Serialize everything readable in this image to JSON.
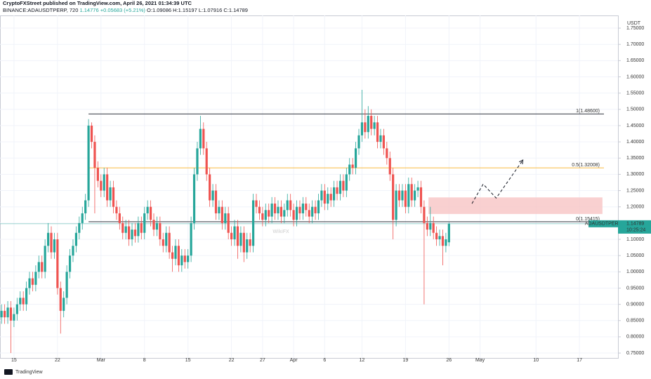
{
  "header": {
    "line1": "CryptoFXStreet published on TradingView.com, April 26, 2021 01:34:39 UTC",
    "symbol": "BINANCE:ADAUSDTPERP, 720",
    "price": "1.14776",
    "change": "+0.05683 (+5.21%)",
    "ohlc": [
      "O:1.09086",
      "H:1.15197",
      "L:1.07916",
      "C:1.14789"
    ]
  },
  "footer": {
    "logo": "TradingView"
  },
  "watermark": "WikiFX",
  "chart_data": {
    "type": "candlestick",
    "y_label": "USDT",
    "up_color": "#26a69a",
    "down_color": "#ef5350",
    "grid": true,
    "xlim": [
      43.75,
      143.2
    ],
    "ylim": [
      0.735,
      1.789
    ],
    "xticks": [
      {
        "value": 46,
        "label": "15"
      },
      {
        "value": 53,
        "label": "22"
      },
      {
        "value": 60,
        "label": "Mar"
      },
      {
        "value": 67,
        "label": "8"
      },
      {
        "value": 74,
        "label": "15"
      },
      {
        "value": 81,
        "label": "22"
      },
      {
        "value": 86,
        "label": "27"
      },
      {
        "value": 91,
        "label": "Apr"
      },
      {
        "value": 96,
        "label": "6"
      },
      {
        "value": 102,
        "label": "12"
      },
      {
        "value": 109,
        "label": "19"
      },
      {
        "value": 116,
        "label": "26"
      },
      {
        "value": 121,
        "label": "May"
      },
      {
        "value": 130,
        "label": "10"
      },
      {
        "value": 137,
        "label": "17"
      }
    ],
    "yticks": [
      {
        "value": 0.75,
        "label": "0.75000"
      },
      {
        "value": 0.8,
        "label": "0.80000"
      },
      {
        "value": 0.85,
        "label": "0.85000"
      },
      {
        "value": 0.9,
        "label": "0.90000"
      },
      {
        "value": 0.95,
        "label": "0.95000"
      },
      {
        "value": 1.0,
        "label": "1.00000"
      },
      {
        "value": 1.05,
        "label": "1.05000"
      },
      {
        "value": 1.1,
        "label": "1.10000"
      },
      {
        "value": 1.15,
        "label": "1.15000"
      },
      {
        "value": 1.2,
        "label": "1.20000"
      },
      {
        "value": 1.25,
        "label": "1.25000"
      },
      {
        "value": 1.3,
        "label": "1.30000"
      },
      {
        "value": 1.35,
        "label": "1.35000"
      },
      {
        "value": 1.4,
        "label": "1.40000"
      },
      {
        "value": 1.45,
        "label": "1.45000"
      },
      {
        "value": 1.5,
        "label": "1.50000"
      },
      {
        "value": 1.55,
        "label": "1.55000"
      },
      {
        "value": 1.6,
        "label": "1.60000"
      },
      {
        "value": 1.65,
        "label": "1.65000"
      },
      {
        "value": 1.7,
        "label": "1.70000"
      },
      {
        "value": 1.75,
        "label": "1.75000"
      }
    ],
    "x": [
      44,
      44.5,
      45,
      45.5,
      46,
      46.5,
      47,
      47.5,
      48,
      48.5,
      49,
      49.5,
      50,
      50.5,
      51,
      51.5,
      52,
      52.5,
      53,
      53.5,
      54,
      54.5,
      55,
      55.5,
      56,
      56.5,
      57,
      57.5,
      58,
      58.5,
      59,
      59.5,
      60,
      60.5,
      61,
      61.5,
      62,
      62.5,
      63,
      63.5,
      64,
      64.5,
      65,
      65.5,
      66,
      66.5,
      67,
      67.5,
      68,
      68.5,
      69,
      69.5,
      70,
      70.5,
      71,
      71.5,
      72,
      72.5,
      73,
      73.5,
      74,
      74.5,
      75,
      75.5,
      76,
      76.5,
      77,
      77.5,
      78,
      78.5,
      79,
      79.5,
      80,
      80.5,
      81,
      81.5,
      82,
      82.5,
      83,
      83.5,
      84,
      84.5,
      85,
      85.5,
      86,
      86.5,
      87,
      87.5,
      88,
      88.5,
      89,
      89.5,
      90,
      90.5,
      91,
      91.5,
      92,
      92.5,
      93,
      93.5,
      94,
      94.5,
      95,
      95.5,
      96,
      96.5,
      97,
      97.5,
      98,
      98.5,
      99,
      99.5,
      100,
      100.5,
      101,
      101.5,
      102,
      102.5,
      103,
      103.5,
      104,
      104.5,
      105,
      105.5,
      106,
      106.5,
      107,
      107.5,
      108,
      108.5,
      109,
      109.5,
      110,
      110.5,
      111,
      111.5,
      112,
      112.5,
      113,
      113.5,
      114,
      114.5,
      115,
      115.5,
      116
    ],
    "open": [
      0.86,
      0.88,
      0.86,
      0.89,
      0.85,
      0.87,
      0.9,
      0.92,
      0.9,
      0.95,
      0.98,
      0.96,
      1.0,
      1.03,
      1.0,
      1.08,
      1.12,
      1.06,
      1.1,
      0.95,
      0.88,
      0.92,
      1.0,
      1.05,
      1.08,
      1.12,
      1.15,
      1.18,
      1.22,
      1.45,
      1.4,
      1.32,
      1.28,
      1.25,
      1.3,
      1.22,
      1.26,
      1.2,
      1.18,
      1.15,
      1.12,
      1.14,
      1.1,
      1.13,
      1.11,
      1.15,
      1.12,
      1.18,
      1.2,
      1.16,
      1.13,
      1.15,
      1.1,
      1.08,
      1.12,
      1.06,
      1.04,
      1.08,
      1.02,
      1.05,
      1.03,
      1.05,
      1.15,
      1.3,
      1.38,
      1.44,
      1.38,
      1.3,
      1.22,
      1.25,
      1.18,
      1.2,
      1.15,
      1.18,
      1.12,
      1.1,
      1.14,
      1.08,
      1.12,
      1.06,
      1.1,
      1.08,
      1.22,
      1.2,
      1.18,
      1.16,
      1.19,
      1.17,
      1.21,
      1.18,
      1.2,
      1.17,
      1.19,
      1.22,
      1.19,
      1.16,
      1.2,
      1.18,
      1.21,
      1.19,
      1.17,
      1.2,
      1.18,
      1.22,
      1.25,
      1.21,
      1.24,
      1.22,
      1.26,
      1.24,
      1.28,
      1.25,
      1.3,
      1.33,
      1.32,
      1.38,
      1.42,
      1.46,
      1.43,
      1.48,
      1.44,
      1.46,
      1.4,
      1.42,
      1.38,
      1.35,
      1.3,
      1.16,
      1.25,
      1.22,
      1.25,
      1.2,
      1.27,
      1.22,
      1.25,
      1.26,
      1.2,
      1.15,
      1.13,
      1.15,
      1.12,
      1.1,
      1.11,
      1.08,
      1.09086
    ],
    "high": [
      0.9,
      0.9,
      0.91,
      0.91,
      0.89,
      0.92,
      0.94,
      0.94,
      0.97,
      1.0,
      1.0,
      1.02,
      1.05,
      1.05,
      1.1,
      1.15,
      1.14,
      1.12,
      1.12,
      0.97,
      0.94,
      1.02,
      1.07,
      1.1,
      1.14,
      1.17,
      1.2,
      1.24,
      1.47,
      1.46,
      1.42,
      1.34,
      1.3,
      1.32,
      1.32,
      1.28,
      1.28,
      1.22,
      1.2,
      1.17,
      1.16,
      1.16,
      1.15,
      1.15,
      1.17,
      1.17,
      1.2,
      1.22,
      1.22,
      1.18,
      1.17,
      1.17,
      1.12,
      1.14,
      1.14,
      1.08,
      1.1,
      1.1,
      1.07,
      1.07,
      1.07,
      1.17,
      1.32,
      1.4,
      1.48,
      1.46,
      1.4,
      1.32,
      1.27,
      1.27,
      1.22,
      1.22,
      1.2,
      1.2,
      1.14,
      1.16,
      1.16,
      1.14,
      1.14,
      1.12,
      1.12,
      1.24,
      1.24,
      1.22,
      1.2,
      1.21,
      1.21,
      1.23,
      1.23,
      1.22,
      1.22,
      1.21,
      1.24,
      1.24,
      1.21,
      1.22,
      1.22,
      1.23,
      1.23,
      1.21,
      1.22,
      1.22,
      1.24,
      1.27,
      1.27,
      1.26,
      1.26,
      1.28,
      1.28,
      1.3,
      1.3,
      1.32,
      1.35,
      1.35,
      1.4,
      1.44,
      1.56,
      1.5,
      1.51,
      1.5,
      1.48,
      1.48,
      1.44,
      1.44,
      1.4,
      1.37,
      1.32,
      1.27,
      1.27,
      1.27,
      1.27,
      1.29,
      1.29,
      1.27,
      1.28,
      1.28,
      1.22,
      1.17,
      1.2,
      1.17,
      1.14,
      1.13,
      1.13,
      1.12,
      1.15197
    ],
    "low": [
      0.84,
      0.84,
      0.84,
      0.75,
      0.83,
      0.85,
      0.88,
      0.88,
      0.88,
      0.93,
      0.94,
      0.94,
      0.98,
      0.98,
      0.98,
      1.06,
      1.04,
      1.04,
      0.93,
      0.81,
      0.86,
      0.9,
      0.98,
      1.03,
      1.06,
      1.1,
      1.13,
      1.16,
      1.2,
      1.38,
      1.18,
      1.26,
      1.23,
      1.23,
      1.2,
      1.2,
      1.18,
      1.16,
      1.13,
      1.1,
      1.1,
      1.08,
      1.08,
      1.09,
      1.09,
      1.1,
      1.1,
      1.16,
      1.14,
      1.11,
      1.11,
      1.08,
      1.06,
      1.06,
      1.04,
      1.0,
      1.02,
      1.0,
      1.0,
      1.01,
      1.01,
      1.03,
      1.13,
      1.28,
      1.36,
      1.36,
      1.28,
      1.2,
      1.2,
      1.16,
      1.16,
      1.13,
      1.13,
      1.1,
      1.08,
      1.08,
      1.04,
      1.06,
      1.03,
      1.04,
      1.06,
      1.06,
      1.18,
      1.16,
      1.14,
      1.14,
      1.15,
      1.15,
      1.16,
      1.16,
      1.15,
      1.15,
      1.17,
      1.17,
      1.14,
      1.14,
      1.16,
      1.16,
      1.17,
      1.15,
      1.15,
      1.16,
      1.16,
      1.2,
      1.19,
      1.19,
      1.2,
      1.2,
      1.22,
      1.22,
      1.23,
      1.23,
      1.28,
      1.3,
      1.3,
      1.36,
      1.4,
      1.41,
      1.41,
      1.42,
      1.42,
      1.38,
      1.38,
      1.36,
      1.33,
      1.28,
      1.1,
      1.14,
      1.2,
      1.2,
      1.18,
      1.18,
      1.2,
      1.2,
      1.23,
      1.18,
      0.9,
      1.11,
      1.11,
      1.1,
      1.08,
      1.08,
      1.02,
      1.06,
      1.07916
    ],
    "close": [
      0.88,
      0.86,
      0.89,
      0.85,
      0.87,
      0.9,
      0.92,
      0.9,
      0.95,
      0.98,
      0.96,
      1.0,
      1.03,
      1.0,
      1.08,
      1.12,
      1.06,
      1.1,
      0.95,
      0.88,
      0.92,
      1.0,
      1.05,
      1.08,
      1.12,
      1.15,
      1.18,
      1.22,
      1.45,
      1.4,
      1.32,
      1.28,
      1.25,
      1.3,
      1.22,
      1.26,
      1.2,
      1.18,
      1.15,
      1.12,
      1.14,
      1.1,
      1.13,
      1.11,
      1.15,
      1.12,
      1.18,
      1.2,
      1.16,
      1.13,
      1.15,
      1.1,
      1.08,
      1.12,
      1.06,
      1.04,
      1.08,
      1.02,
      1.05,
      1.03,
      1.05,
      1.15,
      1.3,
      1.38,
      1.44,
      1.38,
      1.3,
      1.22,
      1.25,
      1.18,
      1.2,
      1.15,
      1.18,
      1.12,
      1.1,
      1.14,
      1.08,
      1.12,
      1.06,
      1.1,
      1.08,
      1.22,
      1.2,
      1.18,
      1.16,
      1.19,
      1.17,
      1.21,
      1.18,
      1.2,
      1.17,
      1.19,
      1.22,
      1.19,
      1.16,
      1.2,
      1.18,
      1.21,
      1.19,
      1.17,
      1.2,
      1.18,
      1.22,
      1.25,
      1.21,
      1.24,
      1.22,
      1.26,
      1.24,
      1.28,
      1.25,
      1.3,
      1.33,
      1.32,
      1.38,
      1.42,
      1.46,
      1.43,
      1.48,
      1.44,
      1.46,
      1.4,
      1.42,
      1.38,
      1.35,
      1.3,
      1.16,
      1.25,
      1.22,
      1.25,
      1.2,
      1.27,
      1.22,
      1.25,
      1.26,
      1.2,
      1.15,
      1.13,
      1.15,
      1.12,
      1.1,
      1.11,
      1.08,
      1.1,
      1.14789
    ],
    "levels": [
      {
        "label": "1(1.48600)",
        "value": 1.486,
        "start": 58,
        "color": "#131722"
      },
      {
        "label": "0.5(1.32008)",
        "value": 1.32008,
        "start": 58,
        "color": "#f7a600"
      },
      {
        "label": "0(1.15415)",
        "value": 1.15415,
        "start": 58,
        "color": "#131722"
      }
    ],
    "zone": {
      "x": [
        112.7,
        140.7
      ],
      "y": [
        1.178,
        1.229
      ],
      "color": "#f8c4c4"
    },
    "arrow": {
      "x": [
        119.7,
        121.5,
        123.6,
        127.9
      ],
      "y": [
        1.21,
        1.27,
        1.227,
        1.344
      ]
    },
    "last_price": {
      "name": "ADAUSDTPERP",
      "value": 1.14789,
      "countdown": "10:25:24",
      "color": "#26a69a"
    }
  }
}
